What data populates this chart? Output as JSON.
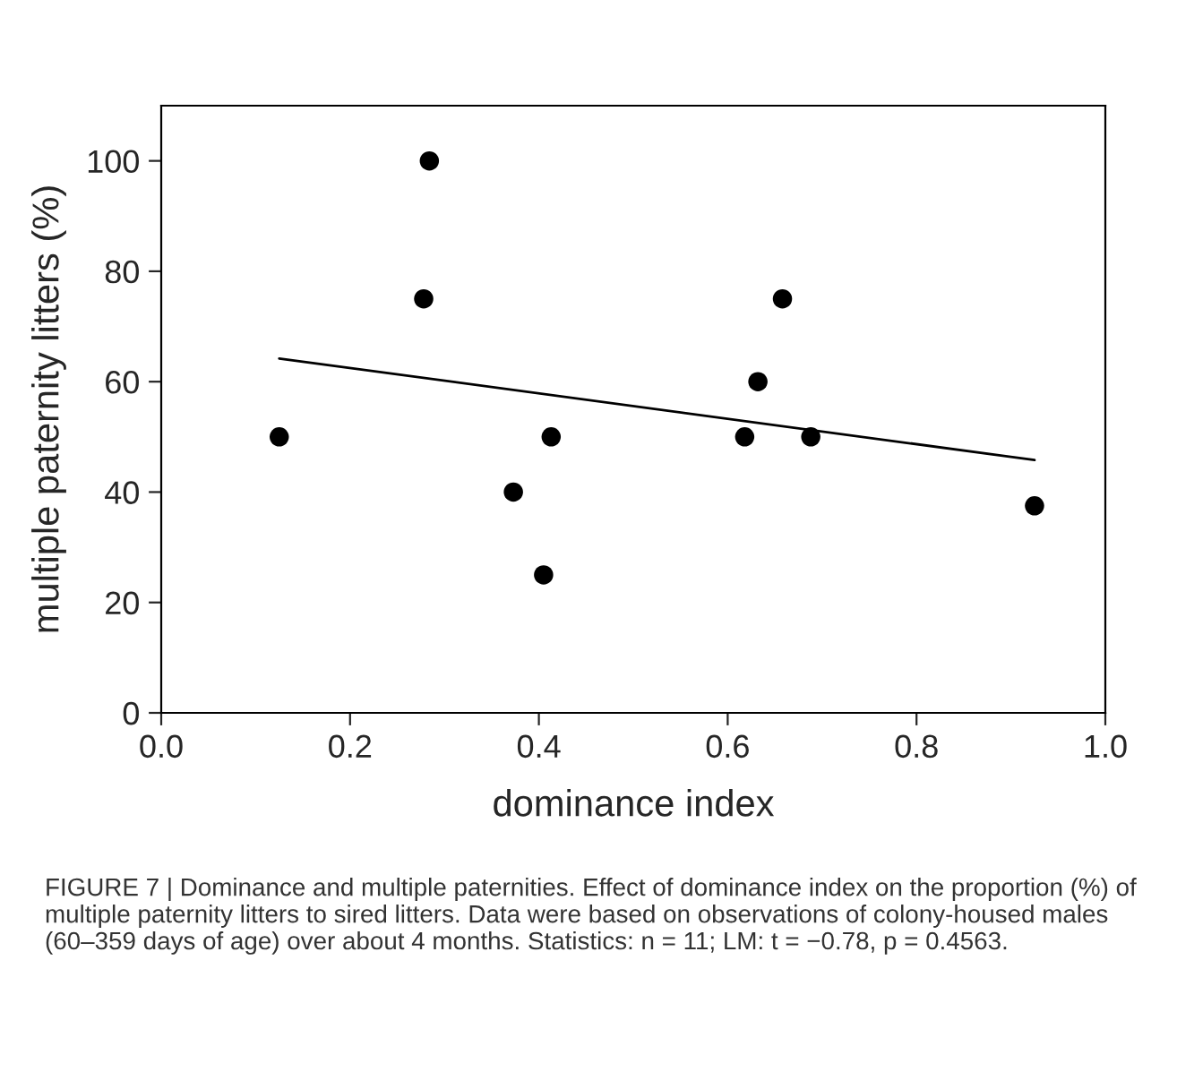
{
  "chart_data": {
    "type": "scatter",
    "xlabel": "dominance index",
    "ylabel": "multiple paternity litters (%)",
    "xlim": [
      0.0,
      1.0
    ],
    "xticks": [
      {
        "value": 0.0,
        "label": "0.0"
      },
      {
        "value": 0.2,
        "label": "0.2"
      },
      {
        "value": 0.4,
        "label": "0.4"
      },
      {
        "value": 0.6,
        "label": "0.6"
      },
      {
        "value": 0.8,
        "label": "0.8"
      },
      {
        "value": 1.0,
        "label": "1.0"
      }
    ],
    "ylim": [
      0,
      110
    ],
    "yticks": [
      0,
      20,
      40,
      60,
      80,
      100
    ],
    "grid": false,
    "legend": false,
    "series": [
      {
        "marker": "circle",
        "color": "#000000",
        "x": [
          0.125,
          0.278,
          0.284,
          0.373,
          0.405,
          0.413,
          0.618,
          0.632,
          0.658,
          0.688,
          0.925
        ],
        "values": [
          50,
          75,
          100,
          40,
          25,
          50,
          50,
          60,
          75,
          50,
          37.5
        ]
      },
      {
        "type": "line",
        "marker": "none",
        "color": "#000000",
        "line_style": "solid",
        "x": [
          0.125,
          0.925
        ],
        "values": [
          64.2,
          45.8
        ]
      }
    ],
    "annotations": [
      "FIGURE 7 | Dominance and multiple paternities. Effect of dominance index on the proportion (%) of multiple paternity litters to sired litters. Data were based on observations of colony-housed males (60–359 days of age) over about 4 months. Statistics: n = 11; LM: t = −0.78, p = 0.4563."
    ]
  }
}
